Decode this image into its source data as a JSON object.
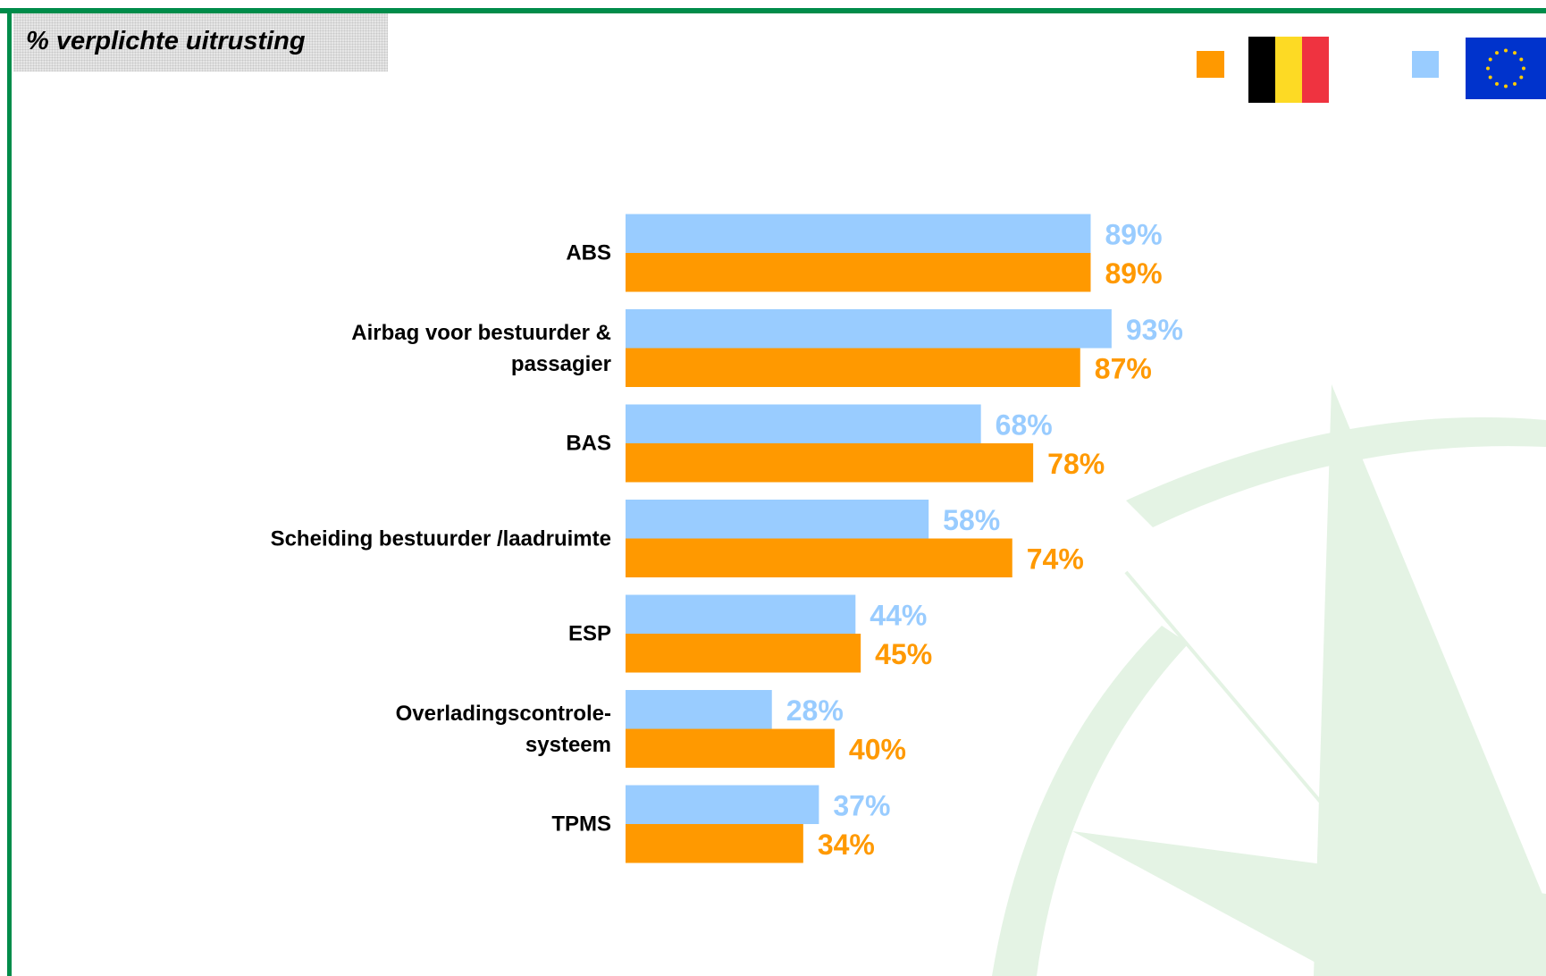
{
  "chart_data": {
    "type": "hbar",
    "title": "% verplichte uitrusting",
    "categories": [
      "ABS",
      "Airbag voor bestuurder &\npassagier",
      "BAS",
      "Scheiding bestuurder /laadruimte",
      "ESP",
      "Overladingscontrole-\nsysteem",
      "TPMS"
    ],
    "series": [
      {
        "color": "#99ccff",
        "values": [
          89,
          93,
          68,
          58,
          44,
          28,
          37
        ],
        "value_labels": [
          "89%",
          "93%",
          "68%",
          "58%",
          "44%",
          "28%",
          "37%"
        ]
      },
      {
        "color": "#ff9900",
        "values": [
          89,
          87,
          78,
          74,
          45,
          40,
          34
        ],
        "value_labels": [
          "89%",
          "87%",
          "78%",
          "74%",
          "45%",
          "40%",
          "34%"
        ]
      }
    ]
  }
}
